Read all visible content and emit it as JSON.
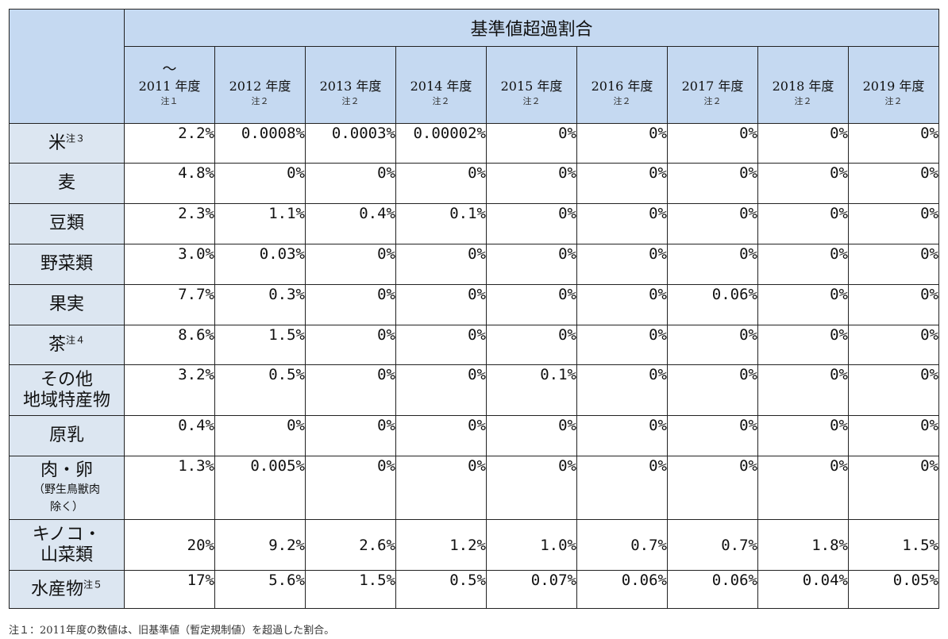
{
  "table": {
    "header_title": "基準値超過割合",
    "years": [
      {
        "tilde": "～",
        "label": "2011 年度",
        "note": "注１"
      },
      {
        "tilde": "",
        "label": "2012 年度",
        "note": "注２"
      },
      {
        "tilde": "",
        "label": "2013 年度",
        "note": "注２"
      },
      {
        "tilde": "",
        "label": "2014 年度",
        "note": "注２"
      },
      {
        "tilde": "",
        "label": "2015 年度",
        "note": "注２"
      },
      {
        "tilde": "",
        "label": "2016 年度",
        "note": "注２"
      },
      {
        "tilde": "",
        "label": "2017 年度",
        "note": "注２"
      },
      {
        "tilde": "",
        "label": "2018 年度",
        "note": "注２"
      },
      {
        "tilde": "",
        "label": "2019 年度",
        "note": "注２"
      }
    ],
    "rows": [
      {
        "label": "米",
        "sup": "注３",
        "sub": "",
        "values": [
          "2.2%",
          "0.0008%",
          "0.0003%",
          "0.00002%",
          "0%",
          "0%",
          "0%",
          "0%",
          "0%"
        ]
      },
      {
        "label": "麦",
        "sup": "",
        "sub": "",
        "values": [
          "4.8%",
          "0%",
          "0%",
          "0%",
          "0%",
          "0%",
          "0%",
          "0%",
          "0%"
        ]
      },
      {
        "label": "豆類",
        "sup": "",
        "sub": "",
        "values": [
          "2.3%",
          "1.1%",
          "0.4%",
          "0.1%",
          "0%",
          "0%",
          "0%",
          "0%",
          "0%"
        ]
      },
      {
        "label": "野菜類",
        "sup": "",
        "sub": "",
        "values": [
          "3.0%",
          "0.03%",
          "0%",
          "0%",
          "0%",
          "0%",
          "0%",
          "0%",
          "0%"
        ]
      },
      {
        "label": "果実",
        "sup": "",
        "sub": "",
        "values": [
          "7.7%",
          "0.3%",
          "0%",
          "0%",
          "0%",
          "0%",
          "0.06%",
          "0%",
          "0%"
        ]
      },
      {
        "label": "茶",
        "sup": "注４",
        "sub": "",
        "values": [
          "8.6%",
          "1.5%",
          "0%",
          "0%",
          "0%",
          "0%",
          "0%",
          "0%",
          "0%"
        ]
      },
      {
        "label": "その他\n地域特産物",
        "sup": "",
        "sub": "",
        "values": [
          "3.2%",
          "0.5%",
          "0%",
          "0%",
          "0.1%",
          "0%",
          "0%",
          "0%",
          "0%"
        ]
      },
      {
        "label": "原乳",
        "sup": "",
        "sub": "",
        "values": [
          "0.4%",
          "0%",
          "0%",
          "0%",
          "0%",
          "0%",
          "0%",
          "0%",
          "0%"
        ]
      },
      {
        "label": "肉・卵",
        "sup": "",
        "sub": "（野生鳥獣肉\n除く）",
        "values": [
          "1.3%",
          "0.005%",
          "0%",
          "0%",
          "0%",
          "0%",
          "0%",
          "0%",
          "0%"
        ]
      },
      {
        "label": "キノコ・\n山菜類",
        "sup": "",
        "sub": "",
        "values": [
          "20%",
          "9.2%",
          "2.6%",
          "1.2%",
          "1.0%",
          "0.7%",
          "0.7%",
          "1.8%",
          "1.5%"
        ]
      },
      {
        "label": "水産物",
        "sup": "注５",
        "sub": "",
        "values": [
          "17%",
          "5.6%",
          "1.5%",
          "0.5%",
          "0.07%",
          "0.06%",
          "0.06%",
          "0.04%",
          "0.05%"
        ]
      }
    ]
  },
  "footer_text": "注１：2011年度の数値は、旧基準値（暫定規制値）を超過した割合。"
}
